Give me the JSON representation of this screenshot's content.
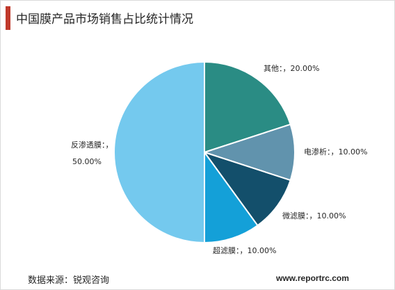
{
  "title": "中国膜产品市场销售占比统计情况",
  "footer": {
    "source": "数据来源：锐观咨询",
    "site": "www.reportrc.com"
  },
  "colors": {
    "accent_bar": "#c0392b",
    "slices": [
      "#2a8c84",
      "#6193ad",
      "#134f6b",
      "#14a0d8",
      "#74c9ee"
    ]
  },
  "chart_data": {
    "type": "pie",
    "start_angle_deg": 0,
    "direction": "clockwise",
    "slices": [
      {
        "label": "其他：",
        "value": 20.0,
        "display": "其他：，20.00%"
      },
      {
        "label": "电渗析：",
        "value": 10.0,
        "display": "电渗析：，10.00%"
      },
      {
        "label": "微滤膜：",
        "value": 10.0,
        "display": "微滤膜：，10.00%"
      },
      {
        "label": "超滤膜：",
        "value": 10.0,
        "display": "超滤膜：，10.00%"
      },
      {
        "label": "反渗透膜：",
        "value": 50.0,
        "display_lines": [
          "反渗透膜：，",
          "50.00%"
        ]
      }
    ]
  }
}
